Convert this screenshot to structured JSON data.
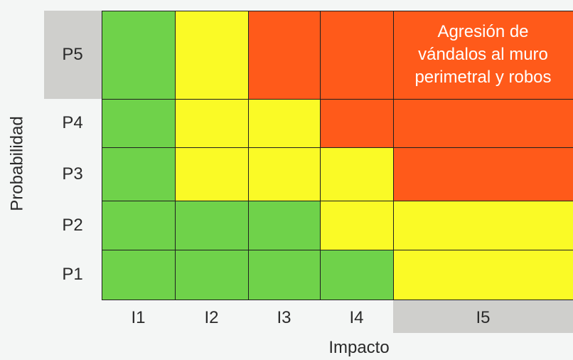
{
  "colors": {
    "green": "#6fd24a",
    "yellow": "#fafa26",
    "red": "#ff5a1a",
    "highlight": "#cfcfcc"
  },
  "axis": {
    "y_title": "Probabilidad",
    "x_title": "Impacto"
  },
  "rows": [
    "P5",
    "P4",
    "P3",
    "P2",
    "P1"
  ],
  "columns": [
    "I1",
    "I2",
    "I3",
    "I4",
    "I5"
  ],
  "matrix": [
    [
      "green",
      "yellow",
      "red",
      "red",
      "red"
    ],
    [
      "green",
      "yellow",
      "yellow",
      "red",
      "red"
    ],
    [
      "green",
      "yellow",
      "yellow",
      "yellow",
      "red"
    ],
    [
      "green",
      "green",
      "green",
      "yellow",
      "yellow"
    ],
    [
      "green",
      "green",
      "green",
      "green",
      "yellow"
    ]
  ],
  "highlight": {
    "row": "P5",
    "column": "I5"
  },
  "risk_note": {
    "lines": [
      "Agresión de",
      "vándalos al muro",
      "perimetral y robos"
    ]
  }
}
